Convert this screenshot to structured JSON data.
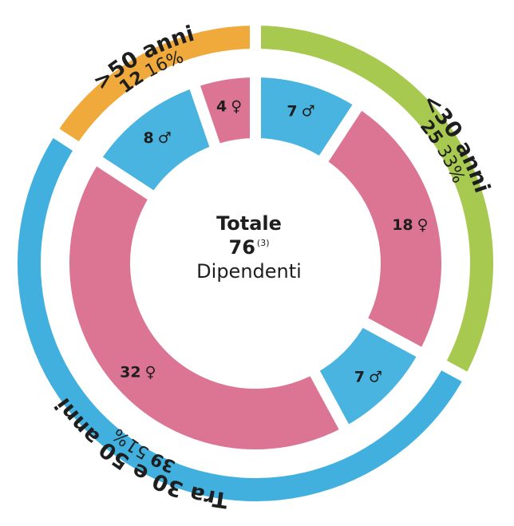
{
  "chart_data": {
    "type": "nested-donut",
    "center": {
      "title": "Totale",
      "total": 76,
      "note": "(3)",
      "label": "Dipendenti"
    },
    "outer": {
      "categories": [
        "<30 anni",
        "Tra 30 e 50 anni",
        ">50 anni"
      ],
      "values": [
        25,
        39,
        12
      ],
      "share_labels": [
        "33%",
        "51%",
        "16%"
      ],
      "colors": [
        "#a8c94f",
        "#41b0de",
        "#f0aa3c"
      ]
    },
    "inner": {
      "values": [
        7,
        18,
        7,
        32,
        8,
        4
      ],
      "symbols": [
        "♂",
        "♀",
        "♂",
        "♀",
        "♂",
        "♀"
      ],
      "colors": [
        "#49b4e0",
        "#dc7594",
        "#49b4e0",
        "#dc7594",
        "#49b4e0",
        "#dc7594"
      ]
    }
  }
}
